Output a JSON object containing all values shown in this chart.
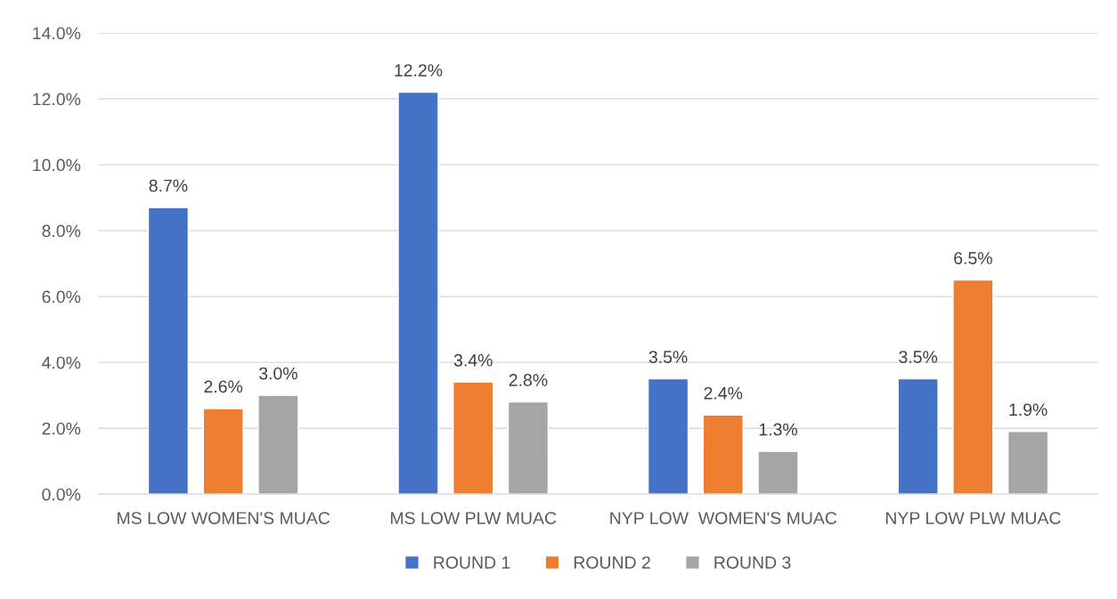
{
  "chart_data": {
    "type": "bar",
    "categories": [
      "MS LOW WOMEN'S MUAC",
      "MS LOW PLW MUAC",
      "NYP LOW  WOMEN'S MUAC",
      "NYP LOW PLW MUAC"
    ],
    "series": [
      {
        "name": "ROUND 1",
        "color": "#4472c4",
        "values": [
          8.7,
          12.2,
          3.5,
          3.5
        ],
        "value_labels": [
          "8.7%",
          "12.2%",
          "3.5%",
          "3.5%"
        ]
      },
      {
        "name": "ROUND 2",
        "color": "#ed7d31",
        "values": [
          2.6,
          3.4,
          2.4,
          6.5
        ],
        "value_labels": [
          "2.6%",
          "3.4%",
          "2.4%",
          "6.5%"
        ]
      },
      {
        "name": "ROUND 3",
        "color": "#a5a5a5",
        "values": [
          3.0,
          2.8,
          1.3,
          1.9
        ],
        "value_labels": [
          "3.0%",
          "2.8%",
          "1.3%",
          "1.9%"
        ]
      }
    ],
    "ylim": [
      0,
      14
    ],
    "yticks": [
      {
        "value": 0,
        "label": "0.0%"
      },
      {
        "value": 2,
        "label": "2.0%"
      },
      {
        "value": 4,
        "label": "4.0%"
      },
      {
        "value": 6,
        "label": "6.0%"
      },
      {
        "value": 8,
        "label": "8.0%"
      },
      {
        "value": 10,
        "label": "10.0%"
      },
      {
        "value": 12,
        "label": "12.0%"
      },
      {
        "value": 14,
        "label": "14.0%"
      }
    ],
    "grid": "y",
    "legend": "bottom"
  }
}
